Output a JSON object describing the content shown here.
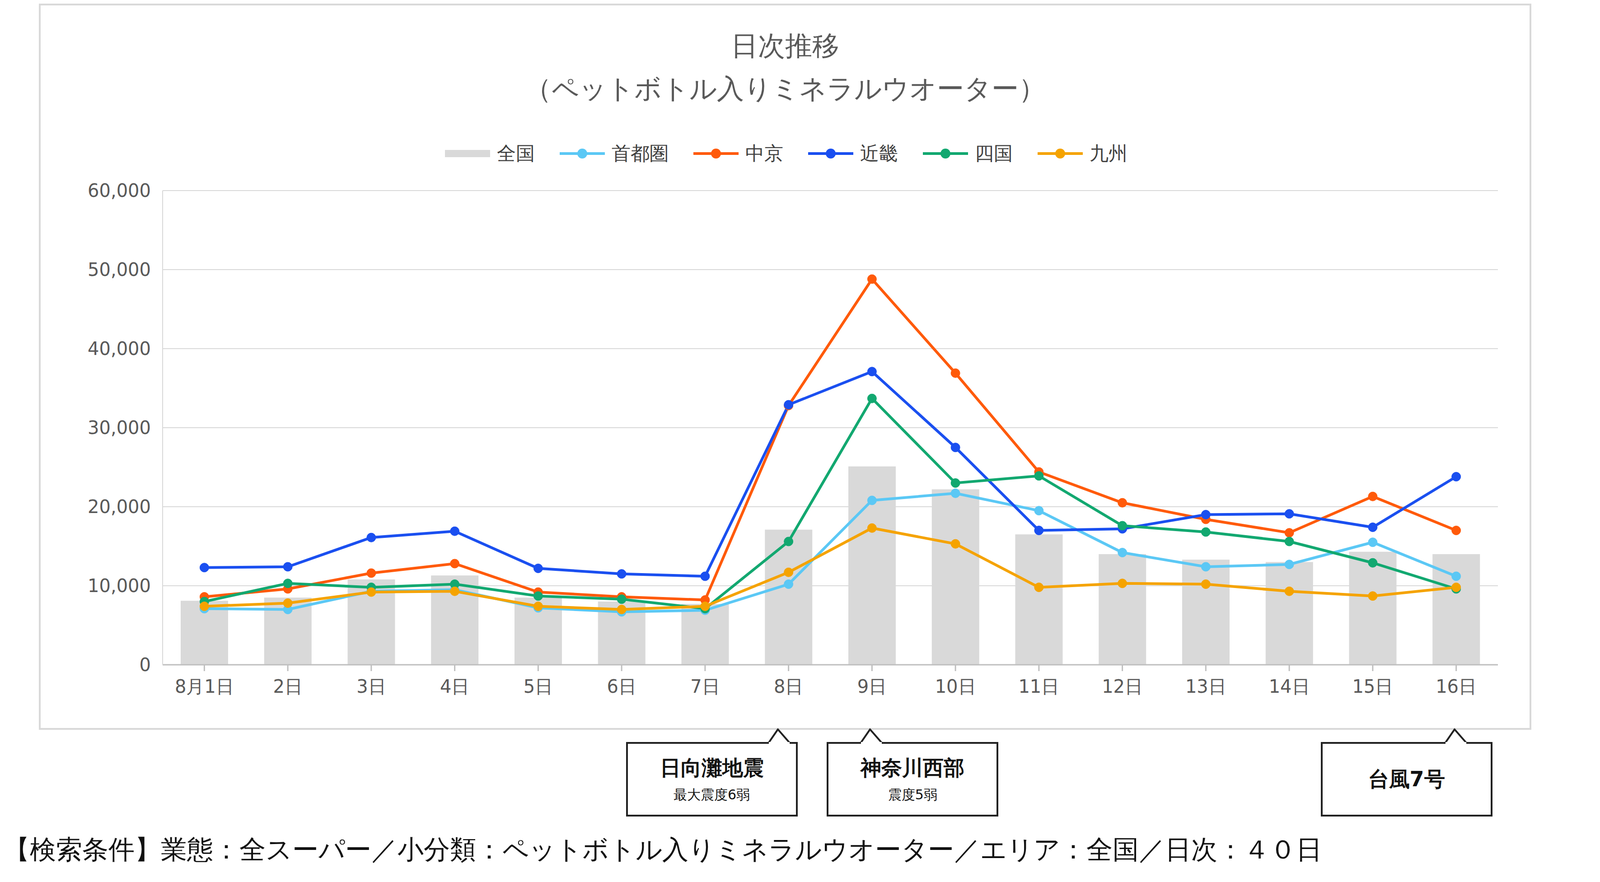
{
  "chart_data": {
    "type": "line",
    "title": "日次推移",
    "subtitle": "（ペットボトル入りミネラルウオーター）",
    "categories": [
      "8月1日",
      "2日",
      "3日",
      "4日",
      "5日",
      "6日",
      "7日",
      "8日",
      "9日",
      "10日",
      "11日",
      "12日",
      "13日",
      "14日",
      "15日",
      "16日"
    ],
    "series": [
      {
        "name": "全国",
        "type": "bar",
        "color": "#d9d9d9",
        "values": [
          8100,
          8500,
          10800,
          11300,
          8500,
          8000,
          7700,
          17100,
          25100,
          22200,
          16500,
          14000,
          13300,
          13000,
          14300,
          14000
        ]
      },
      {
        "name": "首都圏",
        "type": "line",
        "marker": "circle",
        "color": "#5bc8f5",
        "values": [
          7100,
          7000,
          9300,
          9500,
          7200,
          6700,
          6900,
          10200,
          20800,
          21700,
          19500,
          14200,
          12400,
          12700,
          15500,
          11200
        ]
      },
      {
        "name": "中京",
        "type": "line",
        "marker": "circle",
        "color": "#ff5a0a",
        "values": [
          8600,
          9600,
          11600,
          12800,
          9200,
          8600,
          8200,
          32800,
          48800,
          36900,
          24400,
          20500,
          18400,
          16700,
          21300,
          17000
        ]
      },
      {
        "name": "近畿",
        "type": "line",
        "marker": "circle",
        "color": "#1a4ff0",
        "values": [
          12300,
          12400,
          16100,
          16900,
          12200,
          11500,
          11200,
          32900,
          37100,
          27500,
          17000,
          17200,
          19000,
          19100,
          17400,
          23800
        ]
      },
      {
        "name": "四国",
        "type": "line",
        "marker": "circle",
        "color": "#12a870",
        "values": [
          8000,
          10300,
          9800,
          10200,
          8700,
          8300,
          7100,
          15600,
          33700,
          23000,
          23900,
          17600,
          16800,
          15600,
          12900,
          9600
        ]
      },
      {
        "name": "九州",
        "type": "line",
        "marker": "circle",
        "color": "#f5a300",
        "values": [
          7400,
          7800,
          9200,
          9300,
          7400,
          7000,
          7400,
          11700,
          17300,
          15300,
          9800,
          10300,
          10200,
          9300,
          8700,
          9800
        ]
      }
    ],
    "ylim": [
      0,
      60000
    ],
    "yticks": [
      0,
      {
        "value": 10000,
        "label": "10,000"
      },
      {
        "value": 20000,
        "label": "20,000"
      },
      {
        "value": 30000,
        "label": "30,000"
      },
      {
        "value": 40000,
        "label": "40,000"
      },
      {
        "value": 50000,
        "label": "50,000"
      },
      {
        "value": 60000,
        "label": "60,000"
      }
    ],
    "grid": true,
    "legend": "top",
    "annotations": [
      {
        "x": "8日",
        "text": "日向灘地震",
        "subtext": "最大震度6弱"
      },
      {
        "x": "9日",
        "text": "神奈川西部",
        "subtext": "震度5弱"
      },
      {
        "x": "16日",
        "text": "台風7号"
      }
    ],
    "footnote": "【検索条件】業態：全スーパー／小分類：ペットボトル入りミネラルウオーター／エリア：全国／日次：４０日"
  }
}
